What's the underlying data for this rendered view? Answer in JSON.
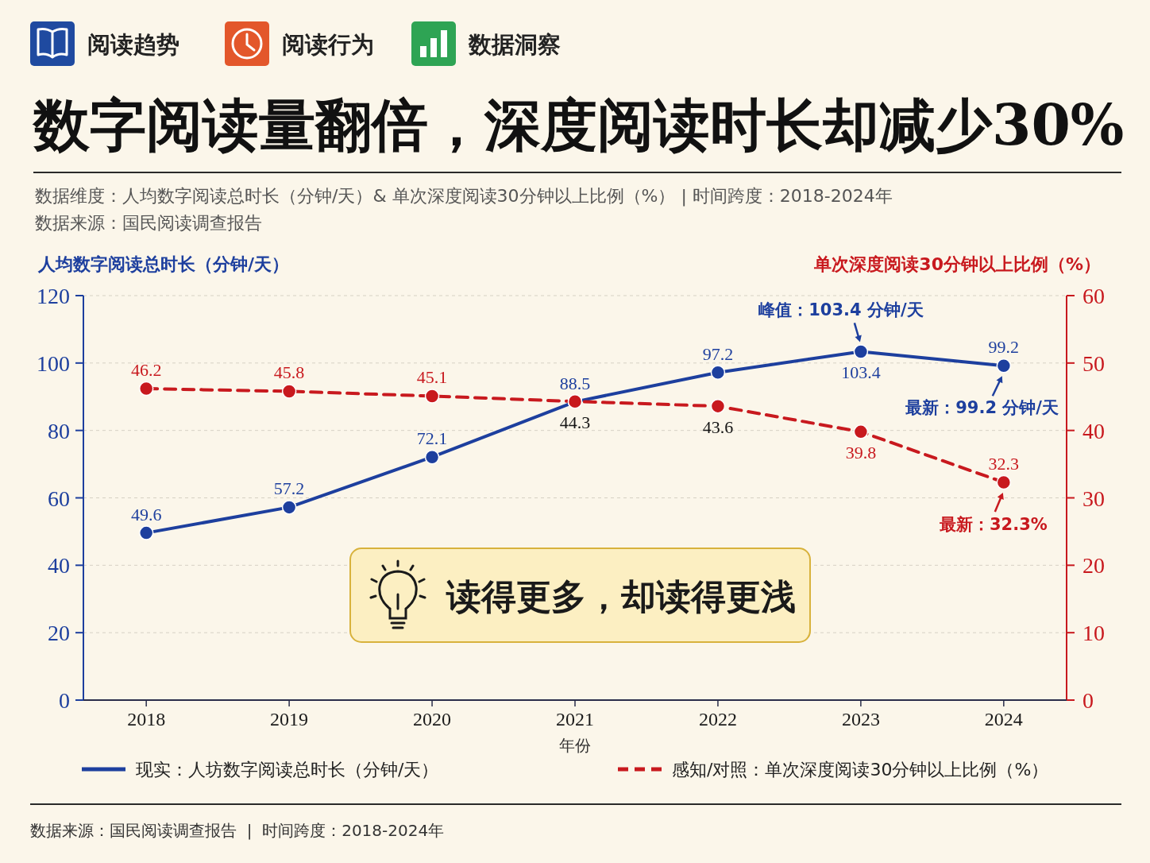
{
  "chart_data": {
    "type": "line",
    "title": "数字阅读量翻倍，深度阅读时长却减少30%",
    "subtitle": "数据维度：人均数字阅读总时长（分钟/天）& 单次深度阅读30分钟以上比例（%） | 时间跨度：2018-2024年",
    "xlabel": "年份",
    "ylabel": "人均数字阅读总时长（分钟/天）",
    "y2label": "单次深度阅读30分钟以上比例（%）",
    "categories": [
      "2018",
      "2019",
      "2020",
      "2021",
      "2022",
      "2023",
      "2024"
    ],
    "series": [
      {
        "name": "现实：人坊数字阅读总时长（分钟/天）",
        "color": "#1d3f9e",
        "values": [
          49.6,
          57.2,
          72.1,
          88.5,
          97.2,
          103.4,
          99.2
        ],
        "line_style": "solid"
      },
      {
        "name": "感知/对照：单次深度阅读30分钟以上比例（%）",
        "color": "#c8191e",
        "axis": "y2",
        "values": [
          46.2,
          45.8,
          45.1,
          44.3,
          43.6,
          39.8,
          32.3
        ],
        "line_style": "dashed"
      }
    ],
    "ylim": [
      0,
      120
    ],
    "yticks": [
      0,
      20,
      40,
      60,
      80,
      100,
      120
    ],
    "y2lim": [
      0,
      60
    ],
    "y2ticks": [
      0,
      10,
      20,
      30,
      40,
      50,
      60
    ],
    "grid": "y",
    "legend": "bottom",
    "marker": "circle",
    "data_labels": true,
    "annotations": [
      "阅读趋势",
      "阅读行为",
      "数据洞察",
      "数据来源：国民阅读调查报告",
      "读得更多，却读得更浅",
      {
        "text": "峰值：103.4 分钟/天",
        "x": "2023",
        "y": 103.4
      },
      {
        "text": "最新：99.2 分钟/天",
        "x": "2024",
        "y": 99.2
      },
      "最新：32.3%",
      "数据来源：国民阅读调查报告  |  时间跨度：2018-2024年"
    ]
  }
}
